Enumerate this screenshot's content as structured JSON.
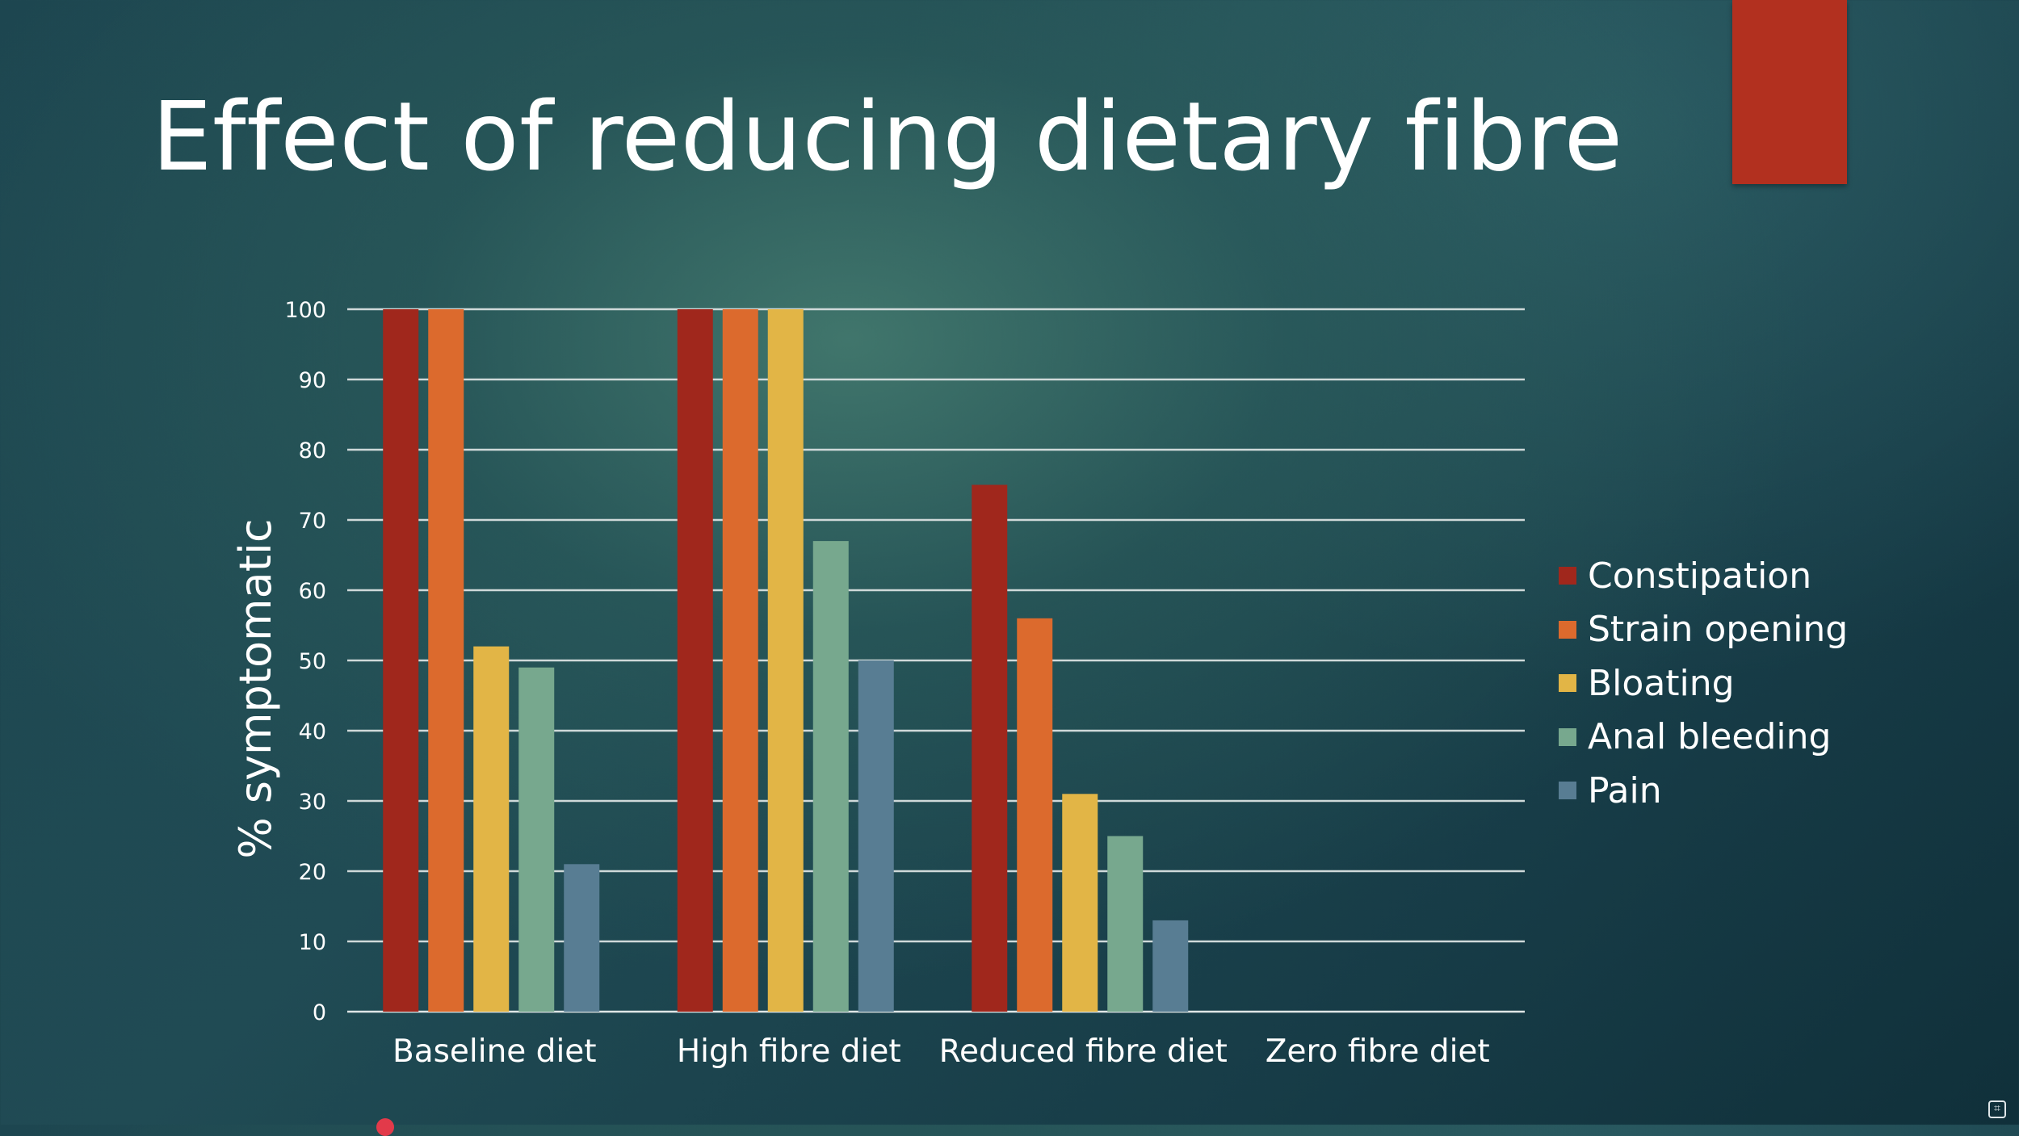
{
  "slide": {
    "title": "Effect of reducing dietary fibre",
    "accent_color": "#b2301f"
  },
  "chart_data": {
    "type": "bar",
    "title": "Effect of reducing dietary fibre",
    "xlabel": "",
    "ylabel": "% symptomatic",
    "ylim": [
      0,
      100
    ],
    "y_ticks": [
      0,
      10,
      20,
      30,
      40,
      50,
      60,
      70,
      80,
      90,
      100
    ],
    "grid": true,
    "legend_position": "right",
    "categories": [
      "Baseline diet",
      "High fibre diet",
      "Reduced fibre diet",
      "Zero fibre diet"
    ],
    "series": [
      {
        "name": "Constipation",
        "color": "#a0271c",
        "values": [
          100,
          100,
          75,
          0
        ]
      },
      {
        "name": "Strain opening",
        "color": "#dc6a2d",
        "values": [
          100,
          100,
          56,
          0
        ]
      },
      {
        "name": "Bloating",
        "color": "#e2b546",
        "values": [
          52,
          100,
          31,
          0
        ]
      },
      {
        "name": "Anal bleeding",
        "color": "#77a88e",
        "values": [
          49,
          67,
          25,
          0
        ]
      },
      {
        "name": "Pain",
        "color": "#587d93",
        "values": [
          21,
          50,
          13,
          0
        ]
      }
    ]
  }
}
